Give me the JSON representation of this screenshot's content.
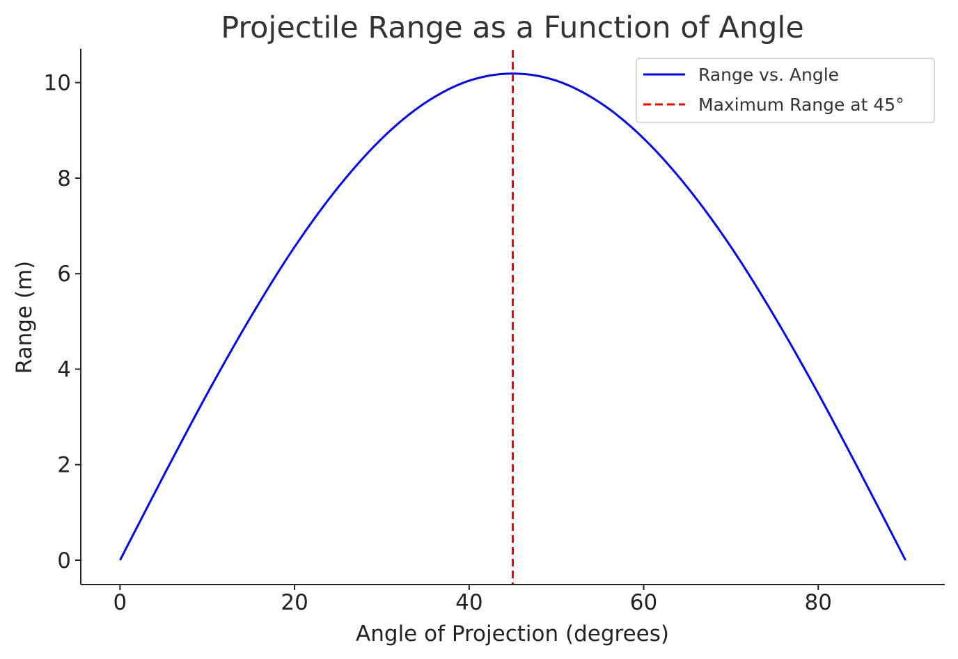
{
  "chart_data": {
    "type": "line",
    "title": "Projectile Range as a Function of Angle",
    "xlabel": "Angle of Projection (degrees)",
    "ylabel": "Range (m)",
    "xlim": [
      -4.5,
      94.5
    ],
    "ylim": [
      -0.51,
      10.71
    ],
    "xticks": [
      0,
      20,
      40,
      60,
      80
    ],
    "yticks": [
      0,
      2,
      4,
      6,
      8,
      10
    ],
    "grid": false,
    "legend_position": "top-right",
    "series": [
      {
        "name": "Range vs. Angle",
        "style": "solid",
        "color": "#0000ff",
        "x": [
          0,
          5,
          10,
          15,
          20,
          25,
          30,
          35,
          40,
          45,
          50,
          55,
          60,
          65,
          70,
          75,
          80,
          85,
          90
        ],
        "y": [
          0,
          1.77,
          3.49,
          5.1,
          6.56,
          7.81,
          8.83,
          9.58,
          10.04,
          10.19,
          10.04,
          9.58,
          8.83,
          7.81,
          6.56,
          5.1,
          3.49,
          1.77,
          0
        ]
      },
      {
        "name": "Maximum Range at 45°",
        "style": "dashed",
        "color": "#ff0000",
        "orientation": "vertical",
        "x": 45
      }
    ]
  }
}
